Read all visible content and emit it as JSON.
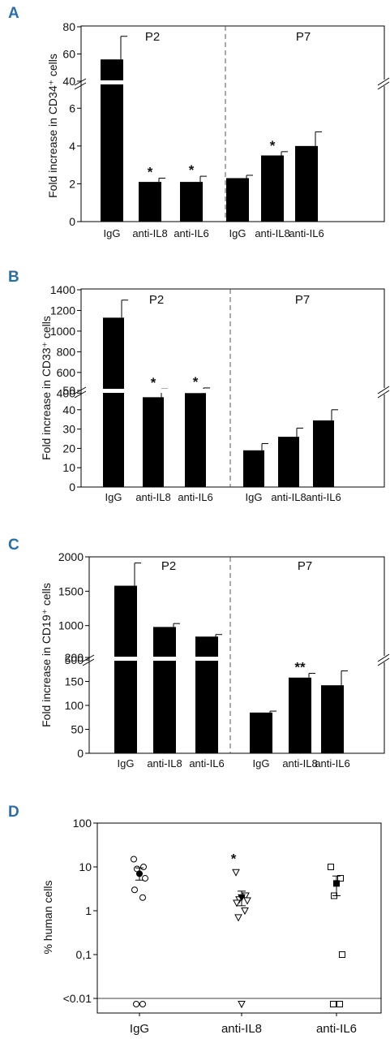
{
  "chart_data": [
    {
      "id": "A",
      "type": "bar",
      "panel_label": "A",
      "ylabel": "Fold increase in CD34⁺ cells",
      "groups": [
        {
          "label": "P2",
          "categories": [
            "IgG",
            "anti-IL8",
            "anti-IL6"
          ],
          "values": [
            56,
            2.1,
            2.1
          ],
          "errors": [
            17,
            0.2,
            0.3
          ],
          "stars": [
            "",
            "*",
            "*"
          ]
        },
        {
          "label": "P7",
          "categories": [
            "IgG",
            "anti-IL8",
            "anti-IL6"
          ],
          "values": [
            2.3,
            3.5,
            4.0
          ],
          "errors": [
            0.15,
            0.2,
            0.75
          ],
          "stars": [
            "",
            "*",
            ""
          ]
        }
      ],
      "y_ticks": [
        {
          "value": 0,
          "label": "0"
        },
        {
          "value": 2,
          "label": "2"
        },
        {
          "value": 4,
          "label": "4"
        },
        {
          "value": 6,
          "label": "6"
        },
        {
          "value": 40,
          "label": "40"
        },
        {
          "value": 60,
          "label": "60"
        },
        {
          "value": 80,
          "label": "80"
        }
      ],
      "axis_break": {
        "lower_range": [
          0,
          7
        ],
        "upper_range": [
          40,
          80
        ]
      }
    },
    {
      "id": "B",
      "type": "bar",
      "panel_label": "B",
      "ylabel": "Fold increase in CD33⁺ cells",
      "groups": [
        {
          "label": "P2",
          "categories": [
            "IgG",
            "anti-IL8",
            "anti-IL6"
          ],
          "values": [
            1130,
            360,
            400
          ],
          "errors": [
            170,
            80,
            50
          ],
          "stars": [
            "",
            "*",
            "*"
          ]
        },
        {
          "label": "P7",
          "categories": [
            "IgG",
            "anti-IL8",
            "anti-IL6"
          ],
          "values": [
            19,
            26,
            34.5
          ],
          "errors": [
            3.5,
            4.5,
            5.5
          ],
          "stars": [
            "",
            "",
            ""
          ]
        }
      ],
      "y_ticks": [
        {
          "value": 0,
          "label": "0"
        },
        {
          "value": 10,
          "label": "10"
        },
        {
          "value": 20,
          "label": "20"
        },
        {
          "value": 30,
          "label": "30"
        },
        {
          "value": 40,
          "label": "40"
        },
        {
          "value": 50,
          "label": "50"
        },
        {
          "value": 400,
          "label": "400"
        },
        {
          "value": 600,
          "label": "600"
        },
        {
          "value": 800,
          "label": "800"
        },
        {
          "value": 1000,
          "label": "1000"
        },
        {
          "value": 1200,
          "label": "1200"
        },
        {
          "value": 1400,
          "label": "1400"
        }
      ],
      "axis_break": {
        "lower_range": [
          0,
          50
        ],
        "upper_range": [
          300,
          1400
        ]
      }
    },
    {
      "id": "C",
      "type": "bar",
      "panel_label": "C",
      "ylabel": "Fold increase in CD19⁺ cells",
      "groups": [
        {
          "label": "P2",
          "categories": [
            "IgG",
            "anti-IL8",
            "anti-IL6"
          ],
          "values": [
            1580,
            980,
            840
          ],
          "errors": [
            330,
            50,
            30
          ],
          "stars": [
            "",
            "",
            ""
          ]
        },
        {
          "label": "P7",
          "categories": [
            "IgG",
            "anti-IL8",
            "anti-IL6"
          ],
          "values": [
            85,
            158,
            142
          ],
          "errors": [
            3,
            9,
            30
          ],
          "stars": [
            "",
            "**",
            ""
          ]
        }
      ],
      "y_ticks": [
        {
          "value": 0,
          "label": "0"
        },
        {
          "value": 50,
          "label": "50"
        },
        {
          "value": 100,
          "label": "100"
        },
        {
          "value": 150,
          "label": "150"
        },
        {
          "value": 200,
          "label": "200"
        },
        {
          "value": 500,
          "label": "500"
        },
        {
          "value": 1000,
          "label": "1000"
        },
        {
          "value": 1500,
          "label": "1500"
        },
        {
          "value": 2000,
          "label": "2000"
        }
      ],
      "axis_break": {
        "lower_range": [
          0,
          200
        ],
        "upper_range": [
          300,
          2000
        ]
      }
    },
    {
      "id": "D",
      "type": "scatter",
      "panel_label": "D",
      "ylabel": "% human cells",
      "y_scale": "log",
      "categories": [
        "IgG",
        "anti-IL8",
        "anti-IL6"
      ],
      "y_ticks": [
        {
          "value": 0.01,
          "label": "<0.01"
        },
        {
          "value": 0.1,
          "label": "0,1"
        },
        {
          "value": 1,
          "label": "1"
        },
        {
          "value": 10,
          "label": "10"
        },
        {
          "value": 100,
          "label": "100"
        }
      ],
      "series": [
        {
          "category": "IgG",
          "marker": "circle-open",
          "points": [
            15,
            10,
            9,
            5.5,
            3,
            2,
            0.01,
            0.01
          ]
        },
        {
          "category": "anti-IL8",
          "marker": "triangle-down-open",
          "points": [
            7.5,
            2.2,
            1.8,
            1.7,
            1.5,
            1.0,
            0.7,
            0.01
          ]
        },
        {
          "category": "anti-IL6",
          "marker": "square-open",
          "points": [
            10,
            5.5,
            2.2,
            0.1,
            0.01,
            0.01
          ]
        }
      ],
      "means": [
        {
          "category": "IgG",
          "marker": "circle-filled",
          "value": 7,
          "err": [
            5,
            9.5
          ]
        },
        {
          "category": "anti-IL8",
          "marker": "triangle-down-filled",
          "value": 2.0,
          "err": [
            1.3,
            2.8
          ]
        },
        {
          "category": "anti-IL6",
          "marker": "square-filled",
          "value": 4.2,
          "err": [
            2.2,
            6.2
          ]
        }
      ],
      "stars": [
        {
          "category": "anti-IL8",
          "text": "*"
        }
      ]
    }
  ]
}
